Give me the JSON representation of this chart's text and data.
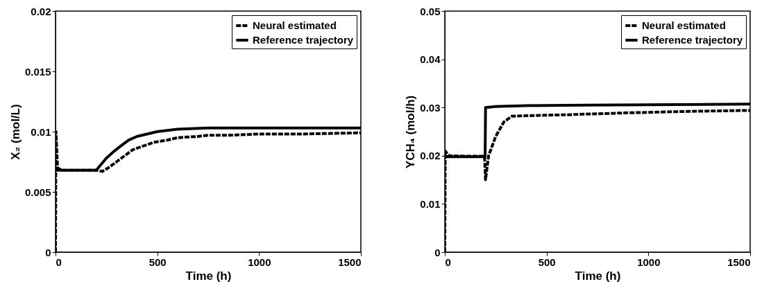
{
  "chart_data": [
    {
      "type": "line",
      "xlabel": "Time (h)",
      "ylabel": "X₂ (mol/L)",
      "xlim": [
        0,
        1500
      ],
      "xticks": [
        0,
        500,
        1000,
        1500
      ],
      "ylim": [
        0,
        0.02
      ],
      "yticks": [
        0,
        0.005,
        0.01,
        0.015,
        0.02
      ],
      "legend": "top right",
      "grid": false,
      "series": [
        {
          "name": "Neural estimated",
          "color": "#000000",
          "line_style": "dashed",
          "x": [
            0,
            2,
            10,
            30,
            100,
            200,
            230,
            260,
            300,
            340,
            380,
            430,
            480,
            550,
            600,
            700,
            750,
            850,
            1000,
            1200,
            1500
          ],
          "values": [
            0,
            0.01,
            0.007,
            0.0068,
            0.0068,
            0.0068,
            0.0067,
            0.007,
            0.0075,
            0.008,
            0.0085,
            0.0088,
            0.0091,
            0.0093,
            0.0095,
            0.0096,
            0.0097,
            0.0097,
            0.0098,
            0.0098,
            0.0099
          ]
        },
        {
          "name": "Reference trajectory",
          "color": "#000000",
          "line_style": "solid",
          "x": [
            0,
            100,
            200,
            250,
            290,
            320,
            360,
            400,
            450,
            500,
            600,
            750,
            1000,
            1500
          ],
          "values": [
            0.0068,
            0.0068,
            0.0068,
            0.0078,
            0.0084,
            0.0088,
            0.0093,
            0.0096,
            0.0098,
            0.01,
            0.0102,
            0.0103,
            0.0103,
            0.0103
          ]
        }
      ]
    },
    {
      "type": "line",
      "xlabel": "Time (h)",
      "ylabel": "YCH₄ (mol/h)",
      "xlim": [
        0,
        1500
      ],
      "xticks": [
        0,
        500,
        1000,
        1500
      ],
      "ylim": [
        0,
        0.05
      ],
      "yticks": [
        0,
        0.01,
        0.02,
        0.03,
        0.04,
        0.05
      ],
      "legend": "top right",
      "grid": false,
      "series": [
        {
          "name": "Neural estimated",
          "color": "#000000",
          "line_style": "dashed",
          "x": [
            0,
            2,
            20,
            100,
            195,
            200,
            215,
            250,
            290,
            330,
            400,
            600,
            900,
            1200,
            1500
          ],
          "values": [
            0,
            0.021,
            0.02,
            0.0199,
            0.0199,
            0.015,
            0.02,
            0.024,
            0.027,
            0.0282,
            0.0283,
            0.0285,
            0.0289,
            0.0292,
            0.0294
          ]
        },
        {
          "name": "Reference trajectory",
          "color": "#000000",
          "line_style": "solid",
          "x": [
            0,
            100,
            198,
            200,
            250,
            400,
            700,
            1500
          ],
          "values": [
            0.0198,
            0.0198,
            0.0198,
            0.03,
            0.0302,
            0.0304,
            0.0305,
            0.0307
          ]
        }
      ]
    }
  ]
}
